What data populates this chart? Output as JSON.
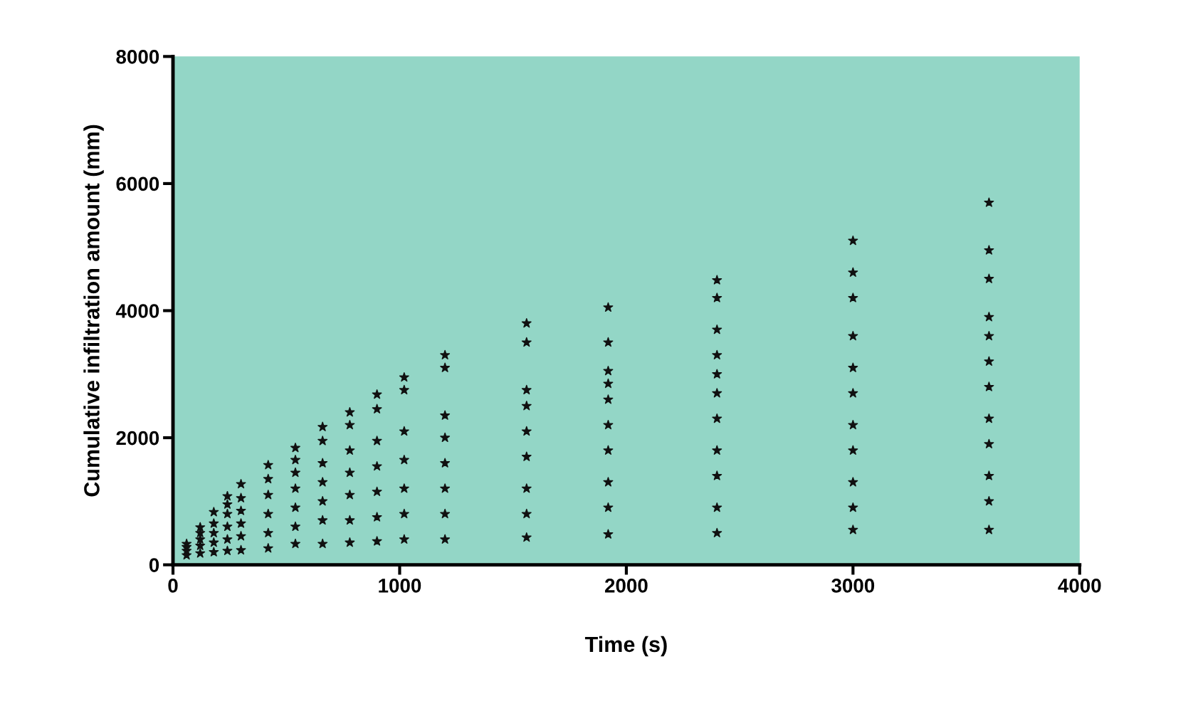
{
  "chart_data": {
    "type": "scatter",
    "xlabel": "Time (s)",
    "ylabel": "Cumulative infiltration amount (mm)",
    "xlim": [
      0,
      4000
    ],
    "xticks": [
      0,
      1000,
      2000,
      3000,
      4000
    ],
    "ylim": [
      0,
      8000
    ],
    "yticks": [
      0,
      2000,
      4000,
      6000,
      8000
    ],
    "grid": false,
    "legend": false,
    "marker": "star",
    "series": [
      {
        "color": "#111111",
        "x": [
          60,
          60,
          60,
          60,
          120,
          120,
          120,
          120,
          120,
          180,
          180,
          180,
          180,
          180,
          240,
          240,
          240,
          240,
          240,
          240,
          300,
          300,
          300,
          300,
          300,
          300,
          420,
          420,
          420,
          420,
          420,
          420,
          540,
          540,
          540,
          540,
          540,
          540,
          540,
          660,
          660,
          660,
          660,
          660,
          660,
          660,
          780,
          780,
          780,
          780,
          780,
          780,
          780,
          900,
          900,
          900,
          900,
          900,
          900,
          900,
          1020,
          1020,
          1020,
          1020,
          1020,
          1020,
          1020,
          1200,
          1200,
          1200,
          1200,
          1200,
          1200,
          1200,
          1200,
          1560,
          1560,
          1560,
          1560,
          1560,
          1560,
          1560,
          1560,
          1560,
          1920,
          1920,
          1920,
          1920,
          1920,
          1920,
          1920,
          1920,
          1920,
          1920,
          2400,
          2400,
          2400,
          2400,
          2400,
          2400,
          2400,
          2400,
          2400,
          2400,
          2400,
          3000,
          3000,
          3000,
          3000,
          3000,
          3000,
          3000,
          3000,
          3000,
          3000,
          3000,
          3600,
          3600,
          3600,
          3600,
          3600,
          3600,
          3600,
          3600,
          3600,
          3600,
          3600,
          3600
        ],
        "values": [
          150,
          220,
          280,
          330,
          180,
          300,
          400,
          500,
          590,
          200,
          350,
          500,
          650,
          830,
          220,
          400,
          600,
          800,
          950,
          1080,
          230,
          450,
          650,
          850,
          1050,
          1270,
          260,
          500,
          800,
          1100,
          1350,
          1570,
          330,
          600,
          900,
          1200,
          1450,
          1650,
          1840,
          330,
          700,
          1000,
          1300,
          1600,
          1950,
          2170,
          350,
          700,
          1100,
          1450,
          1800,
          2200,
          2400,
          370,
          750,
          1150,
          1550,
          1950,
          2450,
          2680,
          400,
          800,
          1200,
          1650,
          2100,
          2750,
          2950,
          400,
          800,
          1200,
          1600,
          2000,
          2350,
          3100,
          3300,
          430,
          800,
          1200,
          1700,
          2100,
          2500,
          2750,
          3500,
          3800,
          480,
          900,
          1300,
          1800,
          2200,
          2600,
          2850,
          3050,
          3500,
          4050,
          500,
          900,
          1400,
          1800,
          2300,
          2700,
          3000,
          3300,
          3700,
          4200,
          4480,
          550,
          900,
          1300,
          1800,
          2200,
          2700,
          3100,
          3600,
          4200,
          4600,
          5100,
          550,
          1000,
          1400,
          1900,
          2300,
          2800,
          3200,
          3600,
          3900,
          4500,
          4950,
          5700
        ]
      }
    ]
  }
}
